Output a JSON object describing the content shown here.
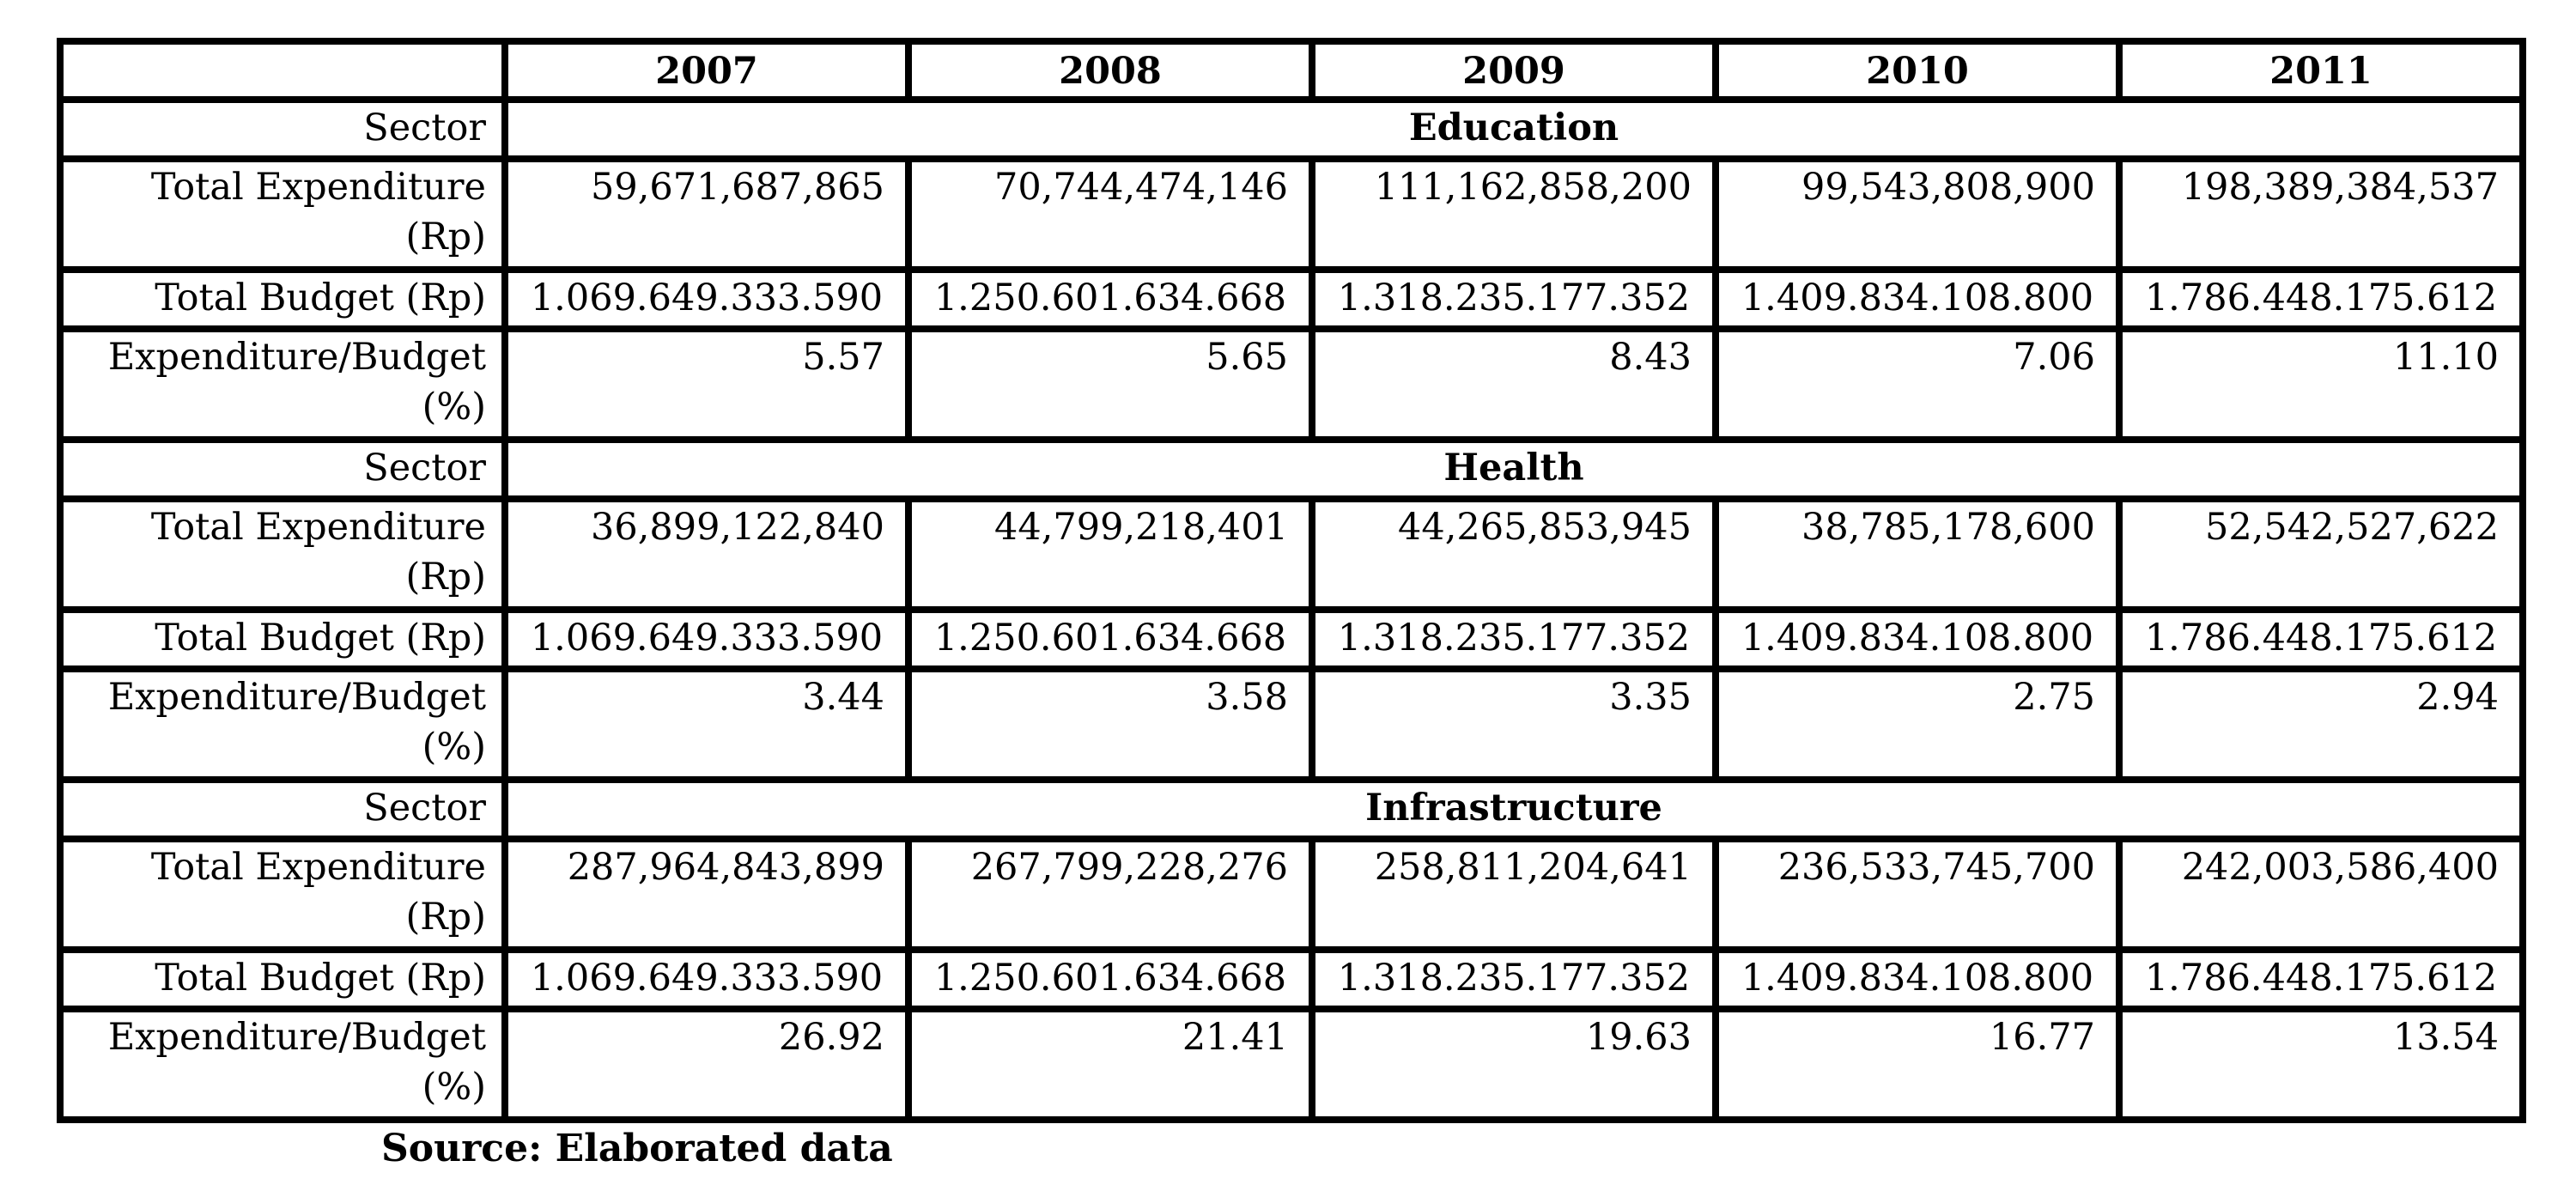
{
  "table": {
    "corner": "",
    "years": [
      "2007",
      "2008",
      "2009",
      "2010",
      "2011"
    ],
    "sectors": [
      {
        "sector_label": "Sector",
        "name": "Education",
        "rows": [
          {
            "label": "Total Expenditure (Rp)",
            "values": [
              "59,671,687,865",
              "70,744,474,146",
              "111,162,858,200",
              "99,543,808,900",
              "198,389,384,537"
            ]
          },
          {
            "label": "Total Budget (Rp)",
            "values": [
              "1.069.649.333.590",
              "1.250.601.634.668",
              "1.318.235.177.352",
              "1.409.834.108.800",
              "1.786.448.175.612"
            ]
          },
          {
            "label": "Expenditure/Budget (%)",
            "values": [
              "5.57",
              "5.65",
              "8.43",
              "7.06",
              "11.10"
            ]
          }
        ]
      },
      {
        "sector_label": "Sector",
        "name": "Health",
        "rows": [
          {
            "label": "Total Expenditure (Rp)",
            "values": [
              "36,899,122,840",
              "44,799,218,401",
              "44,265,853,945",
              "38,785,178,600",
              "52,542,527,622"
            ]
          },
          {
            "label": "Total Budget (Rp)",
            "values": [
              "1.069.649.333.590",
              "1.250.601.634.668",
              "1.318.235.177.352",
              "1.409.834.108.800",
              "1.786.448.175.612"
            ]
          },
          {
            "label": "Expenditure/Budget (%)",
            "values": [
              "3.44",
              "3.58",
              "3.35",
              "2.75",
              "2.94"
            ]
          }
        ]
      },
      {
        "sector_label": "Sector",
        "name": "Infrastructure",
        "rows": [
          {
            "label": "Total Expenditure (Rp)",
            "values": [
              "287,964,843,899",
              "267,799,228,276",
              "258,811,204,641",
              "236,533,745,700",
              "242,003,586,400"
            ]
          },
          {
            "label": "Total Budget (Rp)",
            "values": [
              "1.069.649.333.590",
              "1.250.601.634.668",
              "1.318.235.177.352",
              "1.409.834.108.800",
              "1.786.448.175.612"
            ]
          },
          {
            "label": "Expenditure/Budget (%)",
            "values": [
              "26.92",
              "21.41",
              "19.63",
              "16.77",
              "13.54"
            ]
          }
        ]
      }
    ]
  },
  "source": "Source: Elaborated data"
}
